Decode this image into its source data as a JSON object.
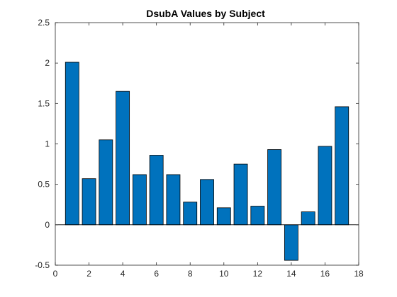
{
  "chart_data": {
    "type": "bar",
    "title": "DsubA Values by Subject",
    "xlabel": "",
    "ylabel": "",
    "x": [
      1,
      2,
      3,
      4,
      5,
      6,
      7,
      8,
      9,
      10,
      11,
      12,
      13,
      14,
      15,
      16,
      17
    ],
    "values": [
      2.01,
      0.57,
      1.05,
      1.65,
      0.62,
      0.86,
      0.62,
      0.28,
      0.56,
      0.21,
      0.75,
      0.23,
      0.93,
      -0.44,
      0.16,
      0.97,
      1.46
    ],
    "xlim": [
      0,
      18
    ],
    "ylim": [
      -0.5,
      2.5
    ],
    "xticks": [
      0,
      2,
      4,
      6,
      8,
      10,
      12,
      14,
      16,
      18
    ],
    "yticks": [
      -0.5,
      0,
      0.5,
      1,
      1.5,
      2,
      2.5
    ],
    "xtick_labels": [
      "0",
      "2",
      "4",
      "6",
      "8",
      "10",
      "12",
      "14",
      "16",
      "18"
    ],
    "ytick_labels": [
      "-0.5",
      "0",
      "0.5",
      "1",
      "1.5",
      "2",
      "2.5"
    ],
    "bar_color": "#0072BD",
    "bar_edge_color": "#000000",
    "grid": false,
    "baseline": 0
  }
}
